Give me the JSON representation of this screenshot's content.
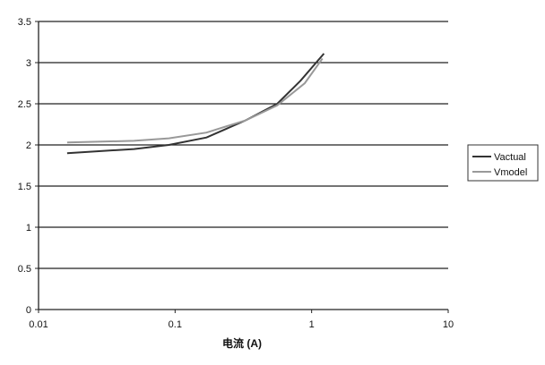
{
  "chart_data": {
    "type": "line",
    "title": "",
    "xlabel": "电流 (A)",
    "ylabel": "",
    "xscale": "log",
    "xlim": [
      0.01,
      10
    ],
    "ylim": [
      0,
      3.5
    ],
    "xticks": [
      "0.01",
      "0.1",
      "1",
      "10"
    ],
    "yticks": [
      "0",
      "0.5",
      "1",
      "1.5",
      "2",
      "2.5",
      "3",
      "3.5"
    ],
    "grid": "horizontal",
    "legend": "right",
    "series": [
      {
        "name": "Vactual",
        "color": "#333333",
        "x": [
          0.0162,
          0.05,
          0.09,
          0.17,
          0.33,
          0.56,
          0.83,
          1.23
        ],
        "y": [
          1.9,
          1.95,
          2.0,
          2.09,
          2.3,
          2.5,
          2.78,
          3.11
        ]
      },
      {
        "name": "Vmodel",
        "color": "#999999",
        "x": [
          0.0162,
          0.05,
          0.09,
          0.17,
          0.33,
          0.56,
          0.89,
          1.2
        ],
        "y": [
          2.03,
          2.05,
          2.08,
          2.15,
          2.3,
          2.48,
          2.75,
          3.05
        ]
      }
    ]
  }
}
